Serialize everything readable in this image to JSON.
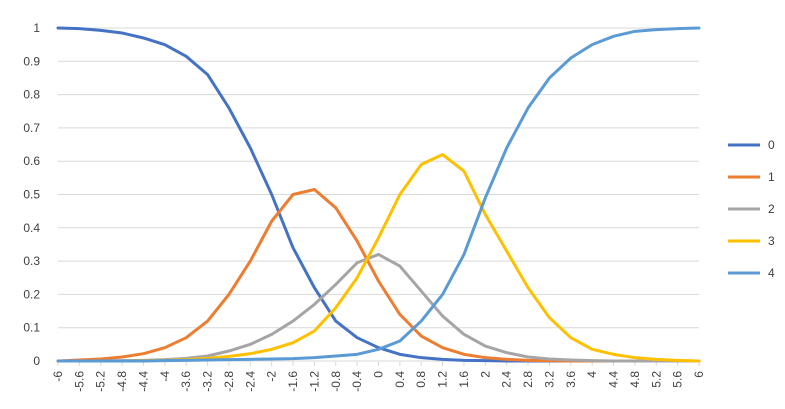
{
  "chart_data": {
    "type": "line",
    "title": "",
    "xlabel": "",
    "ylabel": "",
    "ylim": [
      0,
      1
    ],
    "yticks": [
      "0",
      "0.1",
      "0.2",
      "0.3",
      "0.4",
      "0.5",
      "0.6",
      "0.7",
      "0.8",
      "0.9",
      "1"
    ],
    "xticks": [
      "-6",
      "-5.6",
      "-5.2",
      "-4.8",
      "-4.4",
      "-4",
      "-3.6",
      "-3.2",
      "-2.8",
      "-2.4",
      "-2",
      "-1.6",
      "-1.2",
      "-0.8",
      "-0.4",
      "0",
      "0.4",
      "0.8",
      "1.2",
      "1.6",
      "2",
      "2.4",
      "2.8",
      "3.2",
      "3.6",
      "4",
      "4.4",
      "4.8",
      "5.2",
      "5.6",
      "6"
    ],
    "grid": "horizontal",
    "legend_position": "right",
    "x": [
      -6,
      -5.6,
      -5.2,
      -4.8,
      -4.4,
      -4,
      -3.6,
      -3.2,
      -2.8,
      -2.4,
      -2,
      -1.6,
      -1.2,
      -0.8,
      -0.4,
      0,
      0.4,
      0.8,
      1.2,
      1.6,
      2,
      2.4,
      2.8,
      3.2,
      3.6,
      4,
      4.4,
      4.8,
      5.2,
      5.6,
      6
    ],
    "series": [
      {
        "name": "0",
        "color": "#4472C4",
        "values": [
          1.0,
          0.998,
          0.993,
          0.985,
          0.97,
          0.95,
          0.915,
          0.86,
          0.76,
          0.64,
          0.5,
          0.34,
          0.22,
          0.12,
          0.07,
          0.04,
          0.02,
          0.01,
          0.005,
          0.002,
          0.001,
          0,
          0,
          0,
          0,
          0,
          0,
          0,
          0,
          0,
          0
        ]
      },
      {
        "name": "1",
        "color": "#ED7D31",
        "values": [
          0,
          0.003,
          0.006,
          0.012,
          0.022,
          0.04,
          0.07,
          0.12,
          0.2,
          0.3,
          0.42,
          0.5,
          0.515,
          0.46,
          0.36,
          0.24,
          0.14,
          0.075,
          0.04,
          0.02,
          0.01,
          0.005,
          0.002,
          0.001,
          0,
          0,
          0,
          0,
          0,
          0,
          0
        ]
      },
      {
        "name": "2",
        "color": "#A5A5A5",
        "values": [
          0,
          0,
          0,
          0.001,
          0.002,
          0.004,
          0.008,
          0.015,
          0.03,
          0.05,
          0.08,
          0.12,
          0.17,
          0.23,
          0.295,
          0.32,
          0.285,
          0.21,
          0.135,
          0.08,
          0.045,
          0.025,
          0.012,
          0.006,
          0.003,
          0.001,
          0,
          0,
          0,
          0,
          0
        ]
      },
      {
        "name": "3",
        "color": "#FFC000",
        "values": [
          0,
          0,
          0,
          0,
          0.001,
          0.002,
          0.004,
          0.008,
          0.014,
          0.022,
          0.035,
          0.055,
          0.09,
          0.16,
          0.25,
          0.37,
          0.5,
          0.59,
          0.62,
          0.57,
          0.44,
          0.33,
          0.22,
          0.13,
          0.07,
          0.035,
          0.02,
          0.01,
          0.005,
          0.002,
          0
        ]
      },
      {
        "name": "4",
        "color": "#5B9BD5",
        "values": [
          0,
          0,
          0,
          0,
          0,
          0.001,
          0.002,
          0.003,
          0.004,
          0.005,
          0.006,
          0.007,
          0.01,
          0.015,
          0.02,
          0.035,
          0.06,
          0.12,
          0.2,
          0.32,
          0.49,
          0.64,
          0.76,
          0.85,
          0.91,
          0.95,
          0.975,
          0.99,
          0.995,
          0.998,
          1.0
        ]
      }
    ]
  }
}
